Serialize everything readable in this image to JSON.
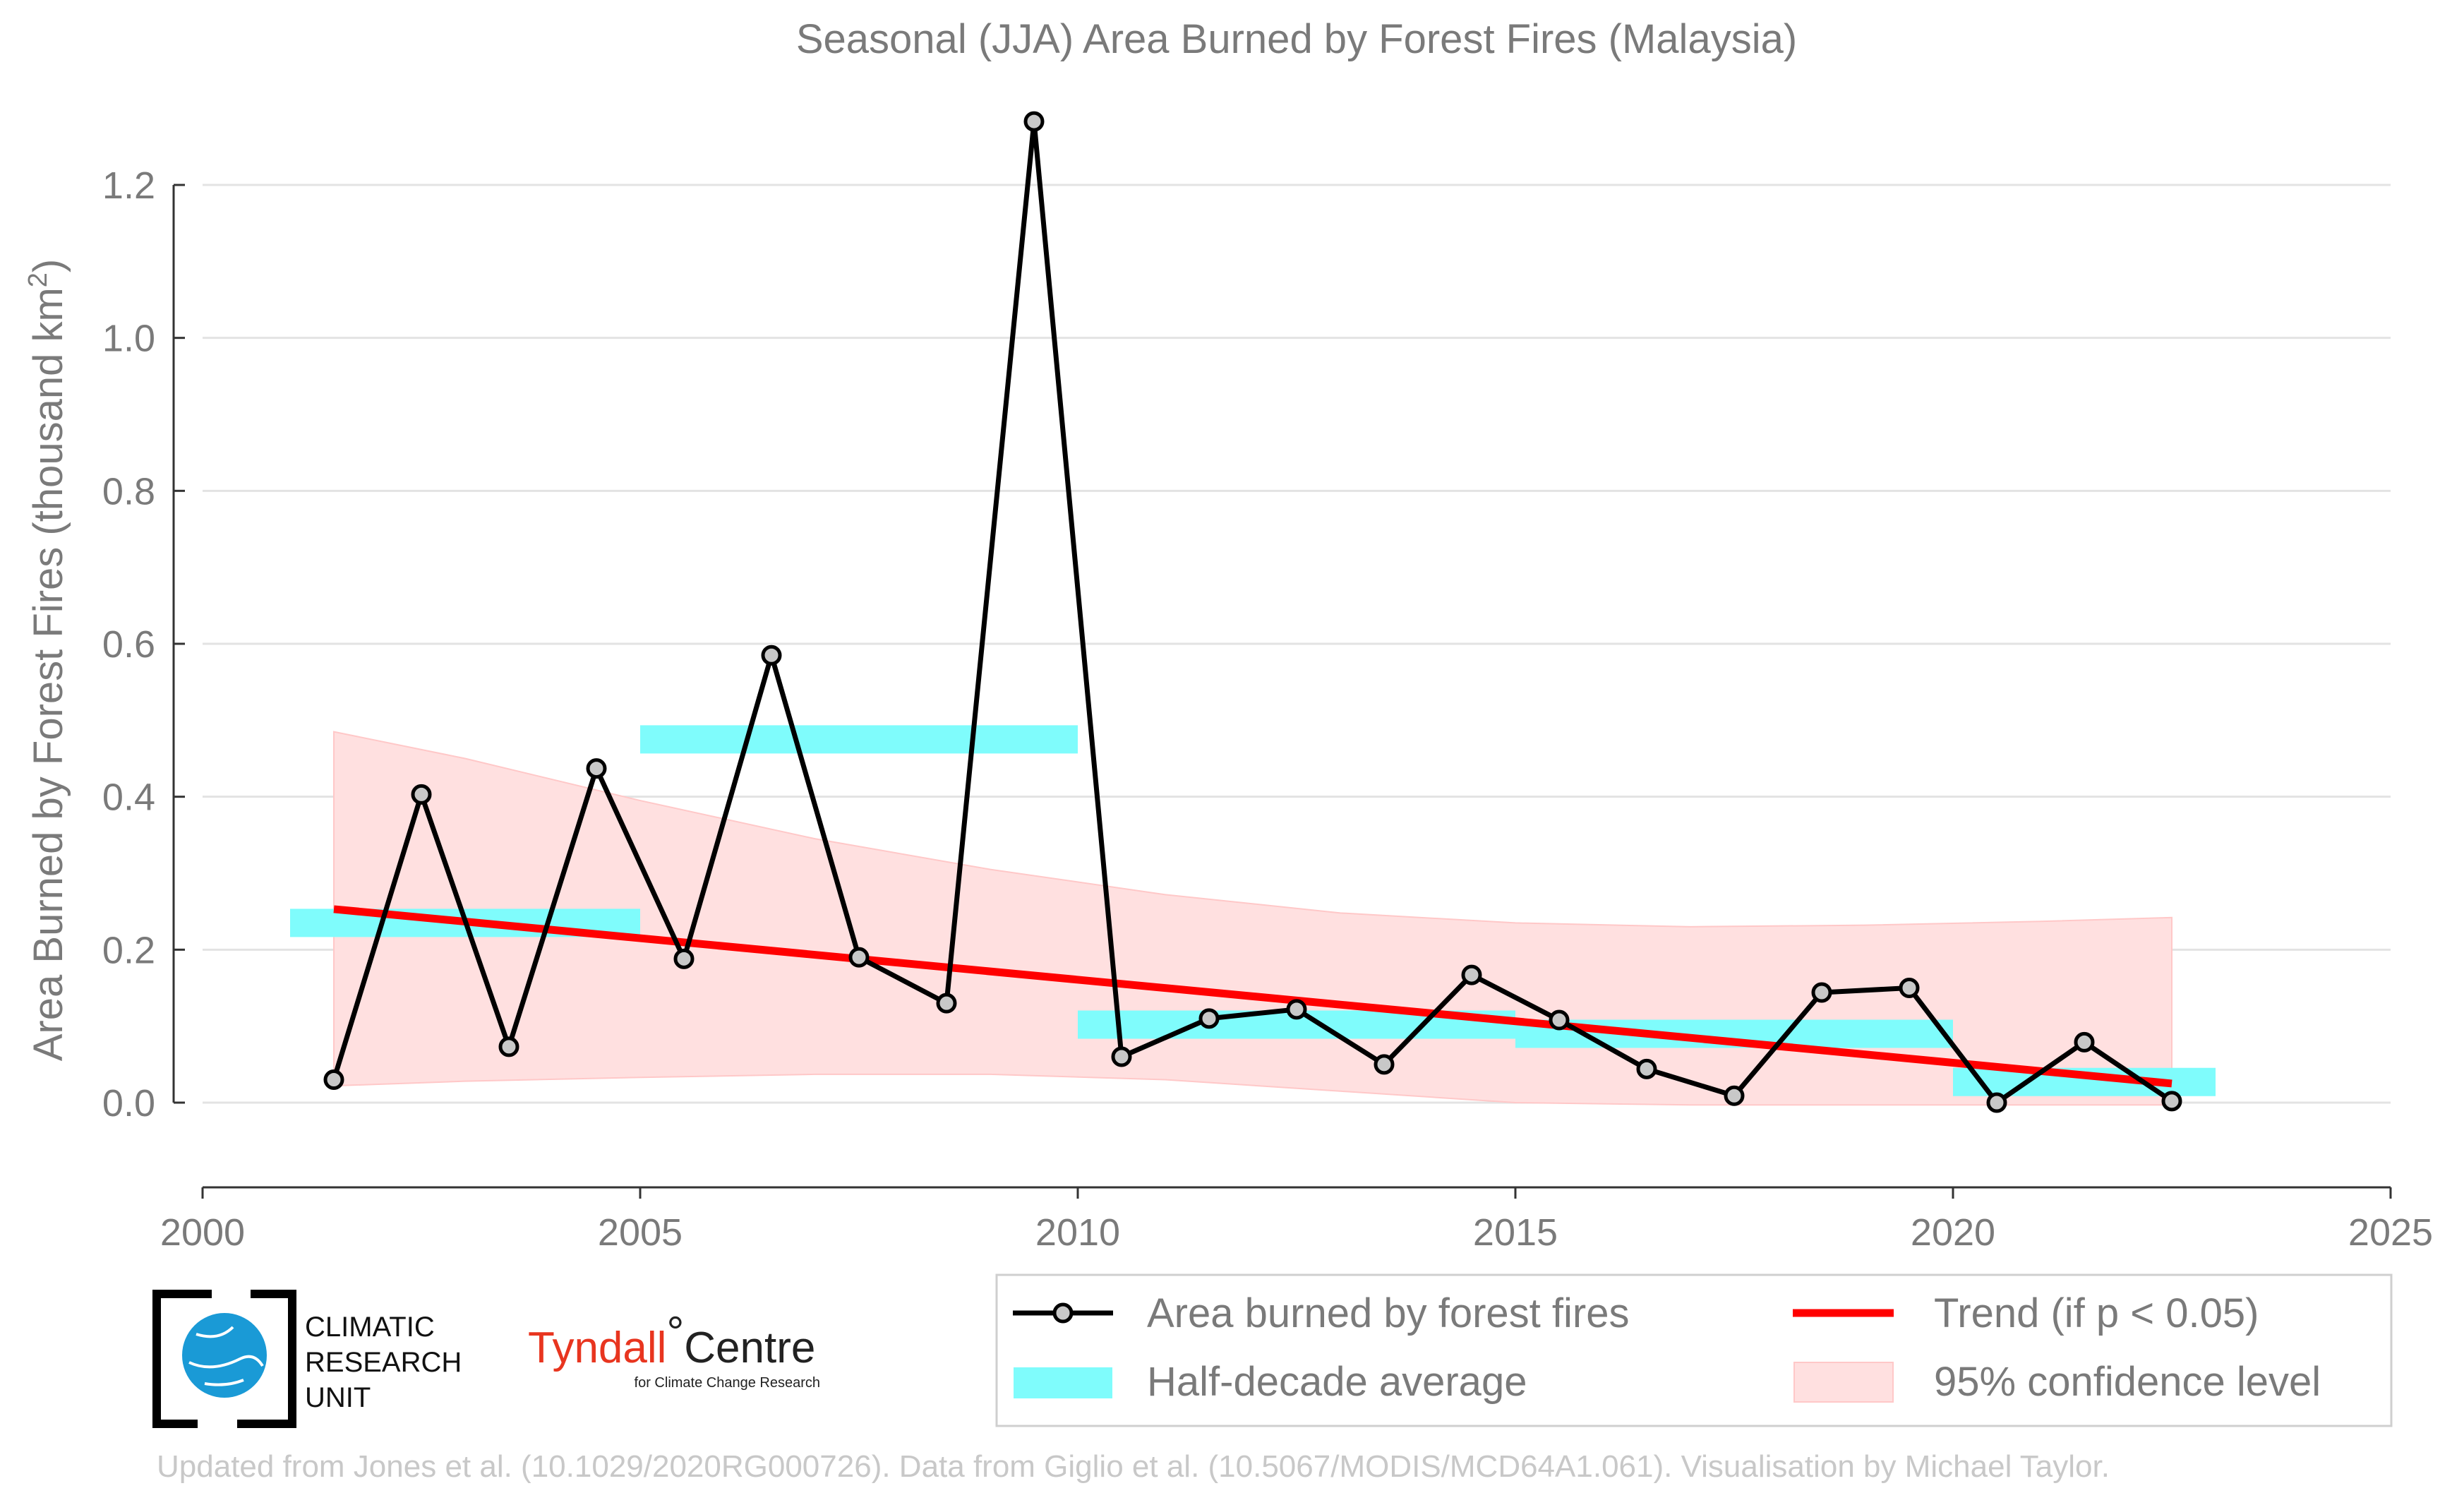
{
  "chart_data": {
    "type": "line",
    "title": "Seasonal (JJA) Area Burned by Forest Fires (Malaysia)",
    "xlabel": "",
    "ylabel": "Area Burned by Forest Fires (thousand km",
    "ylabel_sup": "2",
    "ylabel_close": ")",
    "xlim": [
      2000,
      2025
    ],
    "ylim": [
      -0.1,
      1.3
    ],
    "x_ticks": [
      2000,
      2005,
      2010,
      2015,
      2020,
      2025
    ],
    "y_ticks": [
      0.0,
      0.2,
      0.4,
      0.6,
      0.8,
      1.0,
      1.2
    ],
    "y_tick_labels": [
      "0.0",
      "0.2",
      "0.4",
      "0.6",
      "0.8",
      "1.0",
      "1.2"
    ],
    "grid": "horizontal",
    "legend_position": "bottom-right",
    "series": [
      {
        "name": "Area burned by forest fires",
        "color": "#000000",
        "marker_fill": "#c8c8c8",
        "x": [
          2001.5,
          2002.5,
          2003.5,
          2004.5,
          2005.5,
          2006.5,
          2007.5,
          2008.5,
          2009.5,
          2010.5,
          2011.5,
          2012.5,
          2013.5,
          2014.5,
          2015.5,
          2016.5,
          2017.5,
          2018.5,
          2019.5,
          2020.5,
          2021.5,
          2022.5
        ],
        "values": [
          0.03,
          0.403,
          0.073,
          0.437,
          0.188,
          0.585,
          0.19,
          0.13,
          1.283,
          0.06,
          0.11,
          0.122,
          0.05,
          0.167,
          0.108,
          0.044,
          0.009,
          0.144,
          0.15,
          0.0,
          0.079,
          0.002
        ]
      },
      {
        "name": "Half-decade average",
        "color": "#7ffcfc",
        "segments": [
          {
            "x0": 2001.0,
            "x1": 2005.0,
            "value": 0.235
          },
          {
            "x0": 2005.0,
            "x1": 2010.0,
            "value": 0.475
          },
          {
            "x0": 2010.0,
            "x1": 2015.0,
            "value": 0.102
          },
          {
            "x0": 2015.0,
            "x1": 2020.0,
            "value": 0.09
          },
          {
            "x0": 2020.0,
            "x1": 2023.0,
            "value": 0.027
          }
        ]
      },
      {
        "name": "Trend (if p < 0.05)",
        "color": "#ff0000",
        "x": [
          2001.5,
          2022.5
        ],
        "values": [
          0.253,
          0.025
        ]
      },
      {
        "name": "95% confidence level",
        "color": "#ffe0e0",
        "x": [
          2001.5,
          2003.0,
          2005.0,
          2007.0,
          2009.0,
          2011.0,
          2013.0,
          2015.0,
          2017.0,
          2019.0,
          2021.0,
          2022.5
        ],
        "upper": [
          0.485,
          0.45,
          0.395,
          0.345,
          0.305,
          0.272,
          0.248,
          0.235,
          0.23,
          0.232,
          0.237,
          0.242
        ],
        "lower": [
          0.022,
          0.028,
          0.033,
          0.037,
          0.037,
          0.03,
          0.015,
          0.0,
          -0.003,
          -0.003,
          -0.003,
          -0.003
        ]
      }
    ],
    "legend": [
      {
        "label": "Area burned by forest fires",
        "kind": "line-marker"
      },
      {
        "label": "Trend (if p < 0.05)",
        "kind": "line"
      },
      {
        "label": "Half-decade average",
        "kind": "bar"
      },
      {
        "label": "95% confidence level",
        "kind": "fill"
      }
    ]
  },
  "logos": {
    "cru_line1": "CLIMATIC",
    "cru_line2": "RESEARCH",
    "cru_line3": "UNIT",
    "tyndall_main": "Tyndall",
    "tyndall_degree": "°",
    "tyndall_centre": "Centre",
    "tyndall_sub": "for Climate Change Research"
  },
  "footer": "Updated from Jones et al. (10.1029/2020RG000726). Data from Giglio et al. (10.5067/MODIS/MCD64A1.061). Visualisation by Michael Taylor."
}
